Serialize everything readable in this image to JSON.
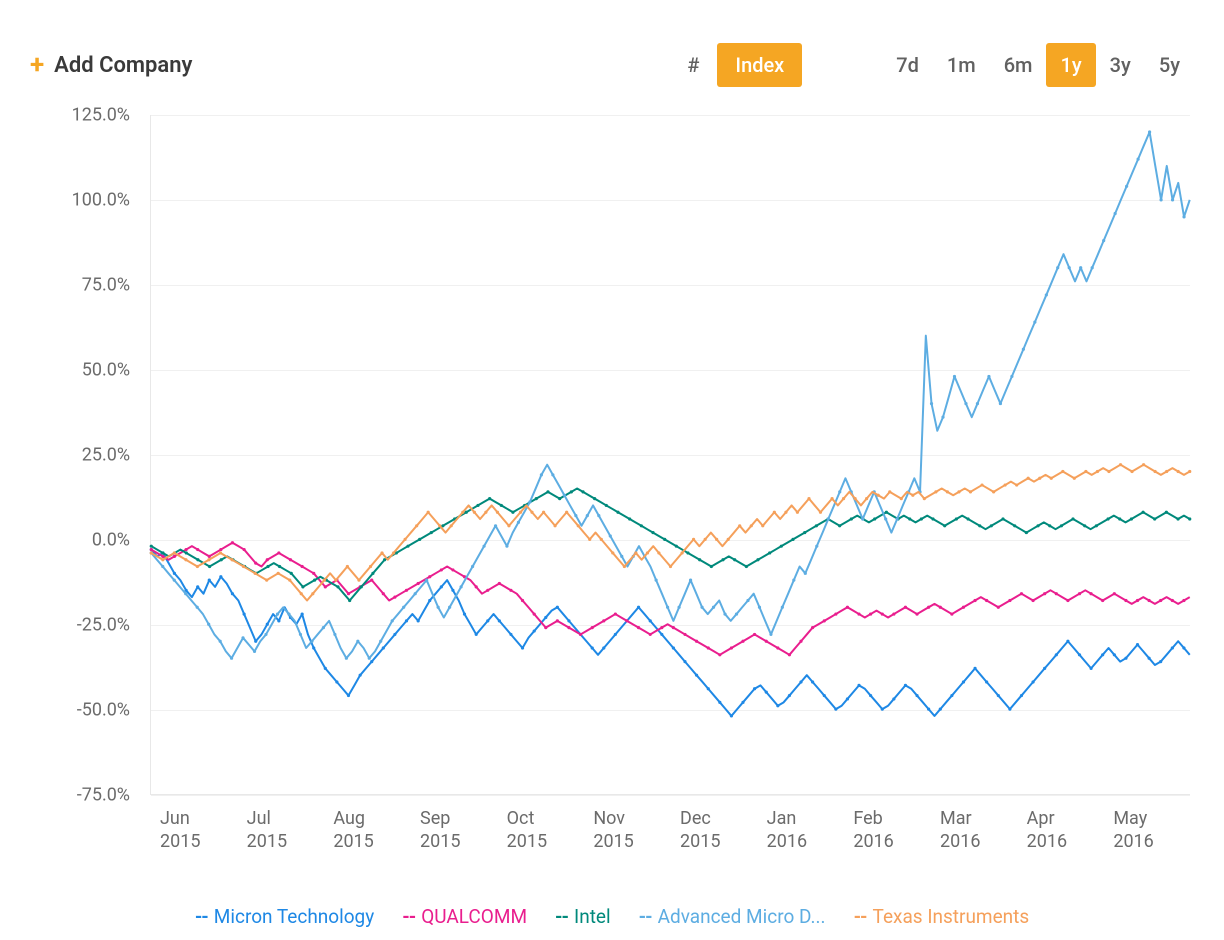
{
  "toolbar": {
    "add_company_label": "Add Company",
    "view_toggle": {
      "hash": "#",
      "index": "Index",
      "active": "index"
    },
    "timeranges": [
      "7d",
      "1m",
      "6m",
      "1y",
      "3y",
      "5y"
    ],
    "active_range": "1y"
  },
  "chart": {
    "type": "line",
    "background_color": "#ffffff",
    "grid_color": "#f0f0f0",
    "axis_text_color": "#6b6b6b",
    "axis_fontsize": 18,
    "ylim": [
      -75,
      125
    ],
    "ytick_step": 25,
    "yticks": [
      "125.0%",
      "100.0%",
      "75.0%",
      "50.0%",
      "25.0%",
      "0.0%",
      "-25.0%",
      "-50.0%",
      "-75.0%"
    ],
    "xticks": [
      {
        "l1": "Jun",
        "l2": "2015"
      },
      {
        "l1": "Jul",
        "l2": "2015"
      },
      {
        "l1": "Aug",
        "l2": "2015"
      },
      {
        "l1": "Sep",
        "l2": "2015"
      },
      {
        "l1": "Oct",
        "l2": "2015"
      },
      {
        "l1": "Nov",
        "l2": "2015"
      },
      {
        "l1": "Dec",
        "l2": "2015"
      },
      {
        "l1": "Jan",
        "l2": "2016"
      },
      {
        "l1": "Feb",
        "l2": "2016"
      },
      {
        "l1": "Mar",
        "l2": "2016"
      },
      {
        "l1": "Apr",
        "l2": "2016"
      },
      {
        "l1": "May",
        "l2": "2016"
      }
    ],
    "line_width": 2,
    "marker_radius": 1.6,
    "series": [
      {
        "name": "Micron Technology",
        "legend_label": "Micron Technology",
        "color": "#1e88e5",
        "values": [
          -3,
          -5,
          -4,
          -7,
          -10,
          -12,
          -15,
          -17,
          -14,
          -16,
          -12,
          -14,
          -11,
          -13,
          -16,
          -18,
          -22,
          -26,
          -30,
          -28,
          -25,
          -22,
          -24,
          -20,
          -23,
          -25,
          -22,
          -28,
          -32,
          -35,
          -38,
          -40,
          -42,
          -44,
          -46,
          -43,
          -40,
          -38,
          -36,
          -34,
          -32,
          -30,
          -28,
          -26,
          -24,
          -22,
          -24,
          -21,
          -18,
          -16,
          -14,
          -12,
          -15,
          -18,
          -22,
          -25,
          -28,
          -26,
          -24,
          -22,
          -24,
          -26,
          -28,
          -30,
          -32,
          -29,
          -27,
          -25,
          -23,
          -21,
          -20,
          -22,
          -24,
          -26,
          -28,
          -30,
          -32,
          -34,
          -32,
          -30,
          -28,
          -26,
          -24,
          -22,
          -20,
          -22,
          -24,
          -26,
          -28,
          -30,
          -32,
          -34,
          -36,
          -38,
          -40,
          -42,
          -44,
          -46,
          -48,
          -50,
          -52,
          -50,
          -48,
          -46,
          -44,
          -43,
          -45,
          -47,
          -49,
          -48,
          -46,
          -44,
          -42,
          -40,
          -42,
          -44,
          -46,
          -48,
          -50,
          -49,
          -47,
          -45,
          -43,
          -44,
          -46,
          -48,
          -50,
          -49,
          -47,
          -45,
          -43,
          -44,
          -46,
          -48,
          -50,
          -52,
          -50,
          -48,
          -46,
          -44,
          -42,
          -40,
          -38,
          -40,
          -42,
          -44,
          -46,
          -48,
          -50,
          -48,
          -46,
          -44,
          -42,
          -40,
          -38,
          -36,
          -34,
          -32,
          -30,
          -32,
          -34,
          -36,
          -38,
          -36,
          -34,
          -32,
          -34,
          -36,
          -35,
          -33,
          -31,
          -33,
          -35,
          -37,
          -36,
          -34,
          -32,
          -30,
          -32,
          -34
        ]
      },
      {
        "name": "QUALCOMM",
        "legend_label": "QUALCOMM",
        "color": "#e91e8e",
        "values": [
          -3,
          -4,
          -5,
          -6,
          -5,
          -4,
          -3,
          -2,
          -3,
          -4,
          -5,
          -4,
          -3,
          -2,
          -1,
          -2,
          -3,
          -5,
          -7,
          -8,
          -6,
          -5,
          -4,
          -5,
          -6,
          -7,
          -8,
          -9,
          -10,
          -12,
          -14,
          -13,
          -12,
          -14,
          -16,
          -15,
          -14,
          -13,
          -12,
          -14,
          -16,
          -18,
          -17,
          -16,
          -15,
          -14,
          -13,
          -12,
          -11,
          -10,
          -9,
          -8,
          -9,
          -10,
          -11,
          -12,
          -14,
          -16,
          -15,
          -14,
          -13,
          -14,
          -15,
          -16,
          -18,
          -20,
          -22,
          -24,
          -26,
          -25,
          -24,
          -25,
          -26,
          -27,
          -28,
          -27,
          -26,
          -25,
          -24,
          -23,
          -22,
          -23,
          -24,
          -25,
          -26,
          -27,
          -28,
          -27,
          -26,
          -25,
          -26,
          -27,
          -28,
          -29,
          -30,
          -31,
          -32,
          -33,
          -34,
          -33,
          -32,
          -31,
          -30,
          -29,
          -28,
          -29,
          -30,
          -31,
          -32,
          -33,
          -34,
          -32,
          -30,
          -28,
          -26,
          -25,
          -24,
          -23,
          -22,
          -21,
          -20,
          -21,
          -22,
          -23,
          -22,
          -21,
          -22,
          -23,
          -22,
          -21,
          -20,
          -21,
          -22,
          -21,
          -20,
          -19,
          -20,
          -21,
          -22,
          -21,
          -20,
          -19,
          -18,
          -17,
          -18,
          -19,
          -20,
          -19,
          -18,
          -17,
          -16,
          -17,
          -18,
          -17,
          -16,
          -15,
          -16,
          -17,
          -18,
          -17,
          -16,
          -15,
          -16,
          -17,
          -18,
          -17,
          -16,
          -17,
          -18,
          -19,
          -18,
          -17,
          -18,
          -19,
          -18,
          -17,
          -18,
          -19,
          -18,
          -17
        ]
      },
      {
        "name": "Intel",
        "legend_label": "Intel",
        "color": "#00897b",
        "values": [
          -2,
          -3,
          -4,
          -5,
          -4,
          -3,
          -4,
          -5,
          -6,
          -7,
          -8,
          -7,
          -6,
          -5,
          -6,
          -7,
          -8,
          -9,
          -10,
          -9,
          -8,
          -7,
          -8,
          -9,
          -10,
          -12,
          -14,
          -13,
          -12,
          -11,
          -12,
          -13,
          -14,
          -16,
          -18,
          -16,
          -14,
          -12,
          -10,
          -8,
          -6,
          -5,
          -4,
          -3,
          -2,
          -1,
          0,
          1,
          2,
          3,
          4,
          5,
          6,
          7,
          8,
          9,
          10,
          11,
          12,
          11,
          10,
          9,
          8,
          9,
          10,
          11,
          12,
          13,
          14,
          13,
          12,
          13,
          14,
          15,
          14,
          13,
          12,
          11,
          10,
          9,
          8,
          7,
          6,
          5,
          4,
          3,
          2,
          1,
          0,
          -1,
          -2,
          -3,
          -4,
          -5,
          -6,
          -7,
          -8,
          -7,
          -6,
          -5,
          -6,
          -7,
          -8,
          -7,
          -6,
          -5,
          -4,
          -3,
          -2,
          -1,
          0,
          1,
          2,
          3,
          4,
          5,
          6,
          5,
          4,
          5,
          6,
          7,
          6,
          5,
          6,
          7,
          8,
          7,
          6,
          7,
          6,
          5,
          6,
          7,
          6,
          5,
          4,
          5,
          6,
          7,
          6,
          5,
          4,
          3,
          4,
          5,
          6,
          5,
          4,
          3,
          2,
          3,
          4,
          5,
          4,
          3,
          4,
          5,
          6,
          5,
          4,
          3,
          4,
          5,
          6,
          7,
          6,
          5,
          6,
          7,
          8,
          7,
          6,
          7,
          8,
          7,
          6,
          7,
          6
        ]
      },
      {
        "name": "Advanced Micro Devices",
        "legend_label": "Advanced Micro D...",
        "color": "#5dade2",
        "values": [
          -4,
          -6,
          -8,
          -10,
          -12,
          -14,
          -16,
          -18,
          -20,
          -22,
          -25,
          -28,
          -30,
          -33,
          -35,
          -32,
          -29,
          -31,
          -33,
          -30,
          -28,
          -25,
          -22,
          -20,
          -22,
          -24,
          -28,
          -32,
          -30,
          -28,
          -26,
          -24,
          -28,
          -32,
          -35,
          -33,
          -30,
          -32,
          -35,
          -33,
          -30,
          -27,
          -24,
          -22,
          -20,
          -18,
          -16,
          -14,
          -12,
          -16,
          -20,
          -23,
          -20,
          -17,
          -14,
          -11,
          -8,
          -5,
          -2,
          1,
          4,
          1,
          -2,
          2,
          5,
          8,
          11,
          15,
          19,
          22,
          19,
          16,
          13,
          10,
          7,
          4,
          7,
          10,
          7,
          4,
          1,
          -2,
          -5,
          -8,
          -5,
          -2,
          -5,
          -8,
          -12,
          -16,
          -20,
          -24,
          -20,
          -16,
          -12,
          -16,
          -20,
          -22,
          -20,
          -18,
          -22,
          -24,
          -22,
          -20,
          -18,
          -16,
          -20,
          -24,
          -28,
          -24,
          -20,
          -16,
          -12,
          -8,
          -10,
          -6,
          -2,
          2,
          6,
          10,
          14,
          18,
          14,
          10,
          6,
          10,
          14,
          10,
          6,
          2,
          6,
          10,
          14,
          18,
          14,
          60,
          40,
          32,
          36,
          42,
          48,
          44,
          40,
          36,
          40,
          44,
          48,
          44,
          40,
          44,
          48,
          52,
          56,
          60,
          64,
          68,
          72,
          76,
          80,
          84,
          80,
          76,
          80,
          76,
          80,
          84,
          88,
          92,
          96,
          100,
          104,
          108,
          112,
          116,
          120,
          110,
          100,
          110,
          100,
          105,
          95,
          100
        ]
      },
      {
        "name": "Texas Instruments",
        "legend_label": "Texas Instruments",
        "color": "#f5a05b",
        "values": [
          -4,
          -5,
          -6,
          -5,
          -4,
          -5,
          -6,
          -7,
          -8,
          -7,
          -6,
          -5,
          -4,
          -5,
          -6,
          -7,
          -8,
          -9,
          -10,
          -11,
          -12,
          -11,
          -10,
          -11,
          -12,
          -14,
          -16,
          -18,
          -16,
          -14,
          -12,
          -10,
          -12,
          -10,
          -8,
          -10,
          -12,
          -10,
          -8,
          -6,
          -4,
          -6,
          -4,
          -2,
          0,
          2,
          4,
          6,
          8,
          6,
          4,
          2,
          4,
          6,
          8,
          10,
          8,
          6,
          8,
          10,
          8,
          6,
          4,
          6,
          8,
          10,
          8,
          6,
          8,
          6,
          4,
          6,
          8,
          6,
          4,
          2,
          0,
          2,
          0,
          -2,
          -4,
          -6,
          -8,
          -6,
          -4,
          -6,
          -4,
          -2,
          -4,
          -6,
          -8,
          -6,
          -4,
          -2,
          0,
          -2,
          0,
          2,
          0,
          -2,
          0,
          2,
          4,
          2,
          4,
          6,
          4,
          6,
          8,
          6,
          8,
          10,
          8,
          10,
          12,
          10,
          8,
          10,
          12,
          10,
          12,
          14,
          12,
          10,
          12,
          14,
          13,
          12,
          14,
          13,
          12,
          14,
          13,
          14,
          12,
          13,
          14,
          15,
          14,
          13,
          14,
          15,
          14,
          15,
          16,
          15,
          14,
          15,
          16,
          17,
          16,
          17,
          18,
          17,
          18,
          19,
          18,
          19,
          20,
          19,
          18,
          19,
          20,
          19,
          20,
          21,
          20,
          21,
          22,
          21,
          20,
          21,
          22,
          21,
          20,
          19,
          20,
          21,
          20,
          19,
          20
        ]
      }
    ]
  }
}
